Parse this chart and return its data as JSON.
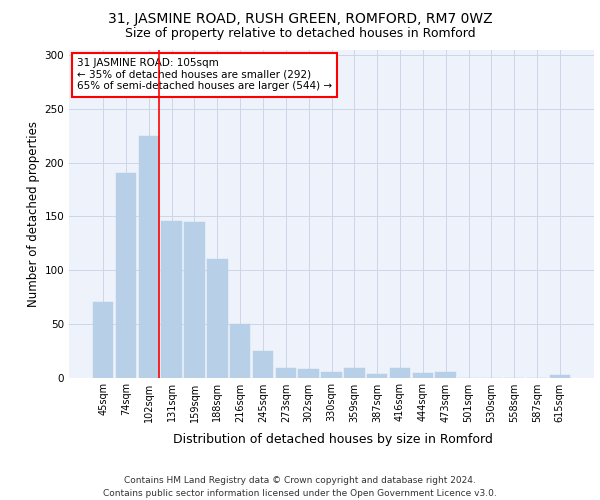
{
  "title1": "31, JASMINE ROAD, RUSH GREEN, ROMFORD, RM7 0WZ",
  "title2": "Size of property relative to detached houses in Romford",
  "xlabel": "Distribution of detached houses by size in Romford",
  "ylabel": "Number of detached properties",
  "categories": [
    "45sqm",
    "74sqm",
    "102sqm",
    "131sqm",
    "159sqm",
    "188sqm",
    "216sqm",
    "245sqm",
    "273sqm",
    "302sqm",
    "330sqm",
    "359sqm",
    "387sqm",
    "416sqm",
    "444sqm",
    "473sqm",
    "501sqm",
    "530sqm",
    "558sqm",
    "587sqm",
    "615sqm"
  ],
  "values": [
    70,
    190,
    225,
    146,
    145,
    110,
    50,
    25,
    9,
    8,
    5,
    9,
    3,
    9,
    4,
    5,
    0,
    0,
    0,
    0,
    2
  ],
  "bar_color": "#b8cfe8",
  "bar_edge_color": "#b8cfe8",
  "annotation_box_text": "31 JASMINE ROAD: 105sqm\n← 35% of detached houses are smaller (292)\n65% of semi-detached houses are larger (544) →",
  "annotation_box_color": "white",
  "annotation_box_edge_color": "red",
  "vline_color": "red",
  "ylim": [
    0,
    305
  ],
  "yticks": [
    0,
    50,
    100,
    150,
    200,
    250,
    300
  ],
  "grid_color": "#ccd6e8",
  "background_color": "#eef2fa",
  "footer": "Contains HM Land Registry data © Crown copyright and database right 2024.\nContains public sector information licensed under the Open Government Licence v3.0.",
  "title1_fontsize": 10,
  "title2_fontsize": 9,
  "xlabel_fontsize": 9,
  "ylabel_fontsize": 8.5,
  "tick_fontsize": 7,
  "annotation_fontsize": 7.5,
  "footer_fontsize": 6.5
}
